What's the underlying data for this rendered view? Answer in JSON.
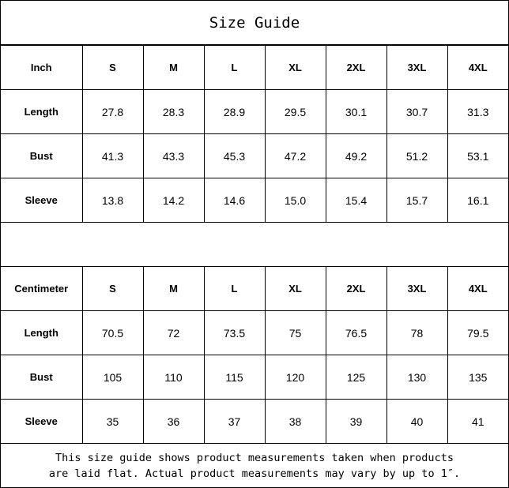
{
  "title": "Size Guide",
  "tables": [
    {
      "unit": "Inch",
      "sizes": [
        "S",
        "M",
        "L",
        "XL",
        "2XL",
        "3XL",
        "4XL"
      ],
      "rows": [
        {
          "label": "Length",
          "values": [
            "27.8",
            "28.3",
            "28.9",
            "29.5",
            "30.1",
            "30.7",
            "31.3"
          ]
        },
        {
          "label": "Bust",
          "values": [
            "41.3",
            "43.3",
            "45.3",
            "47.2",
            "49.2",
            "51.2",
            "53.1"
          ]
        },
        {
          "label": "Sleeve",
          "values": [
            "13.8",
            "14.2",
            "14.6",
            "15.0",
            "15.4",
            "15.7",
            "16.1"
          ]
        }
      ]
    },
    {
      "unit": "Centimeter",
      "sizes": [
        "S",
        "M",
        "L",
        "XL",
        "2XL",
        "3XL",
        "4XL"
      ],
      "rows": [
        {
          "label": "Length",
          "values": [
            "70.5",
            "72",
            "73.5",
            "75",
            "76.5",
            "78",
            "79.5"
          ]
        },
        {
          "label": "Bust",
          "values": [
            "105",
            "110",
            "115",
            "120",
            "125",
            "130",
            "135"
          ]
        },
        {
          "label": "Sleeve",
          "values": [
            "35",
            "36",
            "37",
            "38",
            "39",
            "40",
            "41"
          ]
        }
      ]
    }
  ],
  "footer": {
    "line1": "This size guide shows product measurements taken when products",
    "line2": "are laid flat. Actual product measurements may vary by up to 1″."
  }
}
